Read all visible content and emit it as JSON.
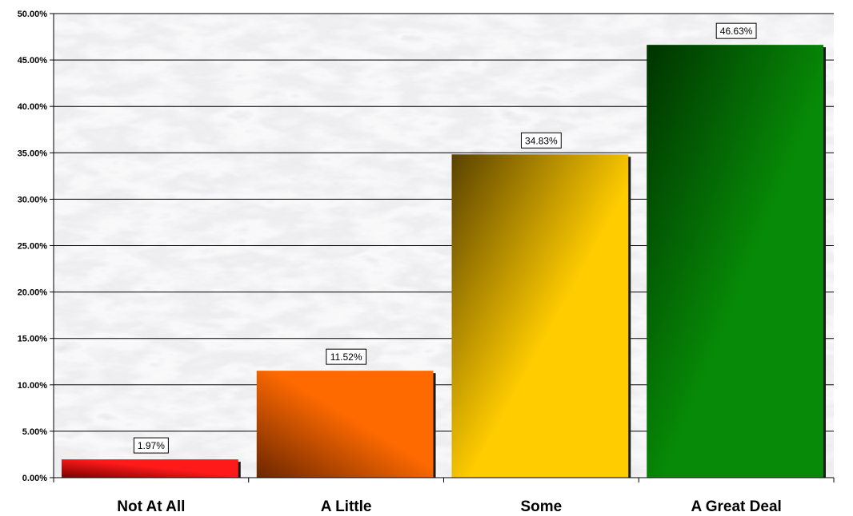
{
  "chart_data": {
    "type": "bar",
    "categories": [
      "Not At All",
      "A Little",
      "Some",
      "A Great Deal"
    ],
    "values": [
      1.97,
      11.52,
      34.83,
      46.63
    ],
    "data_labels": [
      "1.97%",
      "11.52%",
      "34.83%",
      "46.63%"
    ],
    "title": "",
    "xlabel": "",
    "ylabel": "",
    "ylim": [
      0,
      50
    ],
    "yticks": [
      0,
      5,
      10,
      15,
      20,
      25,
      30,
      35,
      40,
      45,
      50
    ],
    "ytick_labels": [
      "0.00%",
      "5.00%",
      "10.00%",
      "15.00%",
      "20.00%",
      "25.00%",
      "30.00%",
      "35.00%",
      "40.00%",
      "45.00%",
      "50.00%"
    ],
    "grid": true,
    "legend": "none",
    "background": "marble texture",
    "colors": [
      {
        "light": "#ff1a1a",
        "dark": "#7a0000"
      },
      {
        "light": "#ff6a00",
        "dark": "#6b2600"
      },
      {
        "light": "#ffcc00",
        "dark": "#5a4200"
      },
      {
        "light": "#078a07",
        "dark": "#003300"
      }
    ]
  }
}
